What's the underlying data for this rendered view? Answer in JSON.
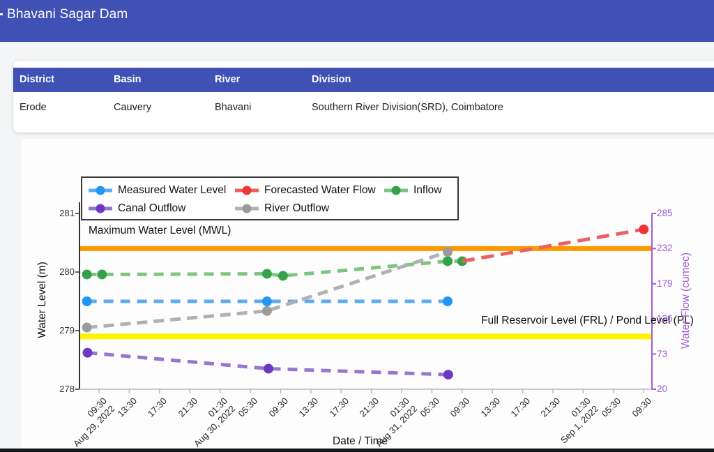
{
  "app_bar": {
    "title": "Bhavani Sagar Dam",
    "background": "#3f51b5"
  },
  "info_table": {
    "columns": [
      "District",
      "Basin",
      "River",
      "Division"
    ],
    "row": {
      "district": "Erode",
      "basin": "Cauvery",
      "river": "Bhavani",
      "division": "Southern River Division(SRD), Coimbatore"
    }
  },
  "chart_data": {
    "type": "line",
    "x_axis": {
      "title": "Date / Time",
      "ticks": [
        "09:30\nAug 29, 2022",
        "13:30",
        "17:30",
        "21:30",
        "01:30\nAug 30, 2022",
        "05:30",
        "09:30",
        "13:30",
        "17:30",
        "21:30",
        "01:30\nAug 31, 2022",
        "05:30",
        "09:30",
        "13:30",
        "17:30",
        "21:30",
        "01:30\nSep 1, 2022",
        "05:30",
        "09:30"
      ]
    },
    "y_left": {
      "title": "Water Level (m)",
      "range": [
        278,
        281
      ],
      "ticks": [
        278,
        279,
        280,
        281
      ],
      "color": "#333333"
    },
    "y_right": {
      "title": "Water Flow (cumec)",
      "range": [
        20,
        285
      ],
      "ticks": [
        20,
        73,
        126,
        179,
        232,
        285
      ],
      "color": "#a25bd3"
    },
    "reference_lines": [
      {
        "label": "Maximum Water Level (MWL)",
        "axis": "left",
        "value": 280.4,
        "color": "#fb9a00",
        "thickness": 7
      },
      {
        "label": "Full Reservoir Level (FRL) / Pond Level (PL)",
        "axis": "left",
        "value": 278.9,
        "color": "#fef200",
        "thickness": 8
      }
    ],
    "series": [
      {
        "name": "Measured Water Level",
        "axis": "left",
        "line_color": "#5caaef",
        "marker_color": "#2196f3",
        "markers": "all",
        "dash": "14 10",
        "points": [
          [
            -0.4,
            279.5
          ],
          [
            5.55,
            279.5
          ],
          [
            11.52,
            279.5
          ]
        ]
      },
      {
        "name": "Forecasted Water Flow",
        "axis": "right",
        "line_color": "#eb6060",
        "marker_color": "#f03535",
        "markers": "last",
        "dash": "18 10",
        "points": [
          [
            12.0,
            213
          ],
          [
            18.0,
            261
          ]
        ]
      },
      {
        "name": "Inflow",
        "axis": "right",
        "line_color": "#7cc57f",
        "marker_color": "#35a24a",
        "markers": "all",
        "dash": "14 10",
        "points": [
          [
            -0.4,
            193
          ],
          [
            0.1,
            193
          ],
          [
            5.55,
            194
          ],
          [
            6.08,
            191
          ],
          [
            11.52,
            213
          ],
          [
            12.0,
            213
          ]
        ]
      },
      {
        "name": "Canal Outflow",
        "axis": "right",
        "line_color": "#9577d0",
        "marker_color": "#6b3ac1",
        "markers": "all",
        "dash": "14 10",
        "points": [
          [
            -0.38,
            75
          ],
          [
            5.6,
            51
          ],
          [
            11.54,
            42
          ]
        ]
      },
      {
        "name": "River Outflow",
        "axis": "right",
        "line_color": "#b1b1b1",
        "marker_color": "#9b9b9b",
        "markers": "all",
        "dash": "15 9",
        "points": [
          [
            -0.4,
            113
          ],
          [
            5.55,
            138
          ],
          [
            11.52,
            227
          ]
        ]
      }
    ],
    "legend_rows": [
      [
        "Measured Water Level",
        "Forecasted Water Flow",
        "Inflow"
      ],
      [
        "Canal Outflow",
        "River Outflow"
      ]
    ]
  }
}
